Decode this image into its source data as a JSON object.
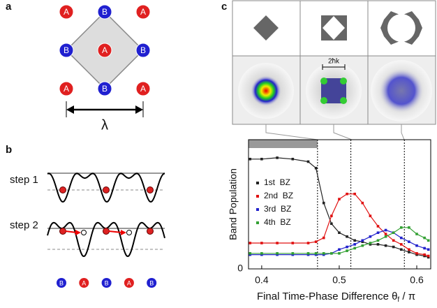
{
  "panel_a": {
    "label": "a",
    "sites": [
      "A",
      "B",
      "A",
      "B",
      "A",
      "B",
      "A",
      "B",
      "A"
    ],
    "period": "λ"
  },
  "panel_b": {
    "label": "b",
    "step1": "step 1",
    "step2": "step 2",
    "sites": [
      "B",
      "A",
      "B",
      "A",
      "B"
    ]
  },
  "panel_c": {
    "label": "c",
    "momentum": "2ħk"
  },
  "chart_data": {
    "type": "line",
    "x_label": [
      "Final Time-Phase Difference θ",
      "f",
      " / π"
    ],
    "y_label": "Band Population",
    "xlim": [
      0.383,
      0.618
    ],
    "xticks": [
      0.4,
      0.5,
      0.6
    ],
    "ylim": [
      0,
      1
    ],
    "yticks": [
      0
    ],
    "vlines": [
      0.472,
      0.515,
      0.584
    ],
    "bar_span": [
      0.383,
      0.472
    ],
    "x": [
      0.385,
      0.4,
      0.42,
      0.44,
      0.46,
      0.47,
      0.48,
      0.49,
      0.5,
      0.51,
      0.52,
      0.53,
      0.54,
      0.55,
      0.56,
      0.57,
      0.58,
      0.59,
      0.6,
      0.61,
      0.615
    ],
    "series": [
      {
        "name": "1st  BZ",
        "color": "#222222",
        "values": [
          0.85,
          0.85,
          0.86,
          0.85,
          0.83,
          0.78,
          0.51,
          0.35,
          0.28,
          0.25,
          0.22,
          0.21,
          0.19,
          0.19,
          0.18,
          0.17,
          0.15,
          0.13,
          0.11,
          0.1,
          0.09
        ]
      },
      {
        "name": "2nd  BZ",
        "color": "#e01010",
        "values": [
          0.2,
          0.2,
          0.2,
          0.2,
          0.2,
          0.21,
          0.24,
          0.41,
          0.54,
          0.58,
          0.58,
          0.51,
          0.41,
          0.33,
          0.27,
          0.22,
          0.19,
          0.15,
          0.12,
          0.11,
          0.1
        ]
      },
      {
        "name": "3rd  BZ",
        "color": "#2222cc",
        "values": [
          0.11,
          0.11,
          0.11,
          0.11,
          0.11,
          0.11,
          0.11,
          0.12,
          0.15,
          0.17,
          0.19,
          0.22,
          0.25,
          0.28,
          0.3,
          0.28,
          0.24,
          0.21,
          0.18,
          0.16,
          0.15
        ]
      },
      {
        "name": "4th  BZ",
        "color": "#33a033",
        "values": [
          0.12,
          0.12,
          0.12,
          0.12,
          0.12,
          0.12,
          0.12,
          0.12,
          0.12,
          0.14,
          0.16,
          0.18,
          0.2,
          0.22,
          0.25,
          0.28,
          0.32,
          0.32,
          0.27,
          0.24,
          0.22
        ]
      }
    ]
  }
}
